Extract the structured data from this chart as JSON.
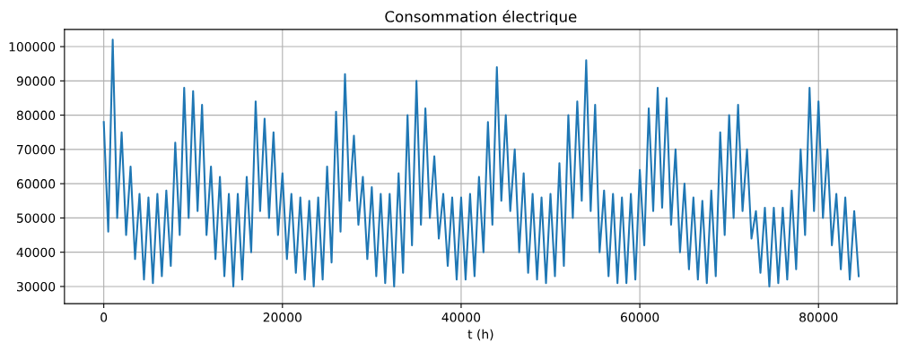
{
  "chart_data": {
    "type": "line",
    "title": "Consommation électrique",
    "xlabel": "t (h)",
    "xlim": [
      -4400,
      88800
    ],
    "ylim": [
      25000,
      105000
    ],
    "xticks": [
      0,
      20000,
      40000,
      60000,
      80000
    ],
    "yticks": [
      30000,
      40000,
      50000,
      60000,
      70000,
      80000,
      90000,
      100000
    ],
    "grid": true,
    "series": [
      {
        "color": "#1f77b4",
        "x": [
          0,
          500,
          1000,
          1500,
          2000,
          2500,
          3000,
          3500,
          4000,
          4500,
          5000,
          5500,
          6000,
          6500,
          7000,
          7500,
          8000,
          8500,
          9000,
          9500,
          10000,
          10500,
          11000,
          11500,
          12000,
          12500,
          13000,
          13500,
          14000,
          14500,
          15000,
          15500,
          16000,
          16500,
          17000,
          17500,
          18000,
          18500,
          19000,
          19500,
          20000,
          20500,
          21000,
          21500,
          22000,
          22500,
          23000,
          23500,
          24000,
          24500,
          25000,
          25500,
          26000,
          26500,
          27000,
          27500,
          28000,
          28500,
          29000,
          29500,
          30000,
          30500,
          31000,
          31500,
          32000,
          32500,
          33000,
          33500,
          34000,
          34500,
          35000,
          35500,
          36000,
          36500,
          37000,
          37500,
          38000,
          38500,
          39000,
          39500,
          40000,
          40500,
          41000,
          41500,
          42000,
          42500,
          43000,
          43500,
          44000,
          44500,
          45000,
          45500,
          46000,
          46500,
          47000,
          47500,
          48000,
          48500,
          49000,
          49500,
          50000,
          50500,
          51000,
          51500,
          52000,
          52500,
          53000,
          53500,
          54000,
          54500,
          55000,
          55500,
          56000,
          56500,
          57000,
          57500,
          58000,
          58500,
          59000,
          59500,
          60000,
          60500,
          61000,
          61500,
          62000,
          62500,
          63000,
          63500,
          64000,
          64500,
          65000,
          65500,
          66000,
          66500,
          67000,
          67500,
          68000,
          68500,
          69000,
          69500,
          70000,
          70500,
          71000,
          71500,
          72000,
          72500,
          73000,
          73500,
          74000,
          74500,
          75000,
          75500,
          76000,
          76500,
          77000,
          77500,
          78000,
          78500,
          79000,
          79500,
          80000,
          80500,
          81000,
          81500,
          82000,
          82500,
          83000,
          83500,
          84000,
          84500
        ],
        "values": [
          78000,
          46000,
          102000,
          50000,
          75000,
          45000,
          65000,
          38000,
          57000,
          32000,
          56000,
          31000,
          57000,
          33000,
          58000,
          36000,
          72000,
          45000,
          88000,
          50000,
          87000,
          52000,
          83000,
          45000,
          65000,
          38000,
          62000,
          33000,
          57000,
          30000,
          57000,
          32000,
          62000,
          40000,
          84000,
          52000,
          79000,
          50000,
          75000,
          45000,
          63000,
          38000,
          57000,
          34000,
          56000,
          32000,
          55000,
          30000,
          56000,
          32000,
          65000,
          37000,
          81000,
          46000,
          92000,
          55000,
          74000,
          48000,
          62000,
          38000,
          59000,
          33000,
          57000,
          31000,
          57000,
          30000,
          63000,
          34000,
          80000,
          42000,
          90000,
          48000,
          82000,
          50000,
          68000,
          44000,
          57000,
          36000,
          56000,
          32000,
          56000,
          32000,
          57000,
          33000,
          62000,
          40000,
          78000,
          48000,
          94000,
          55000,
          80000,
          52000,
          70000,
          40000,
          63000,
          34000,
          57000,
          32000,
          56000,
          31000,
          57000,
          33000,
          66000,
          36000,
          80000,
          50000,
          84000,
          55000,
          96000,
          52000,
          83000,
          40000,
          58000,
          33000,
          57000,
          31000,
          56000,
          31000,
          57000,
          32000,
          64000,
          42000,
          82000,
          52000,
          88000,
          53000,
          85000,
          48000,
          70000,
          40000,
          60000,
          35000,
          56000,
          32000,
          55000,
          31000,
          58000,
          33000,
          75000,
          45000,
          80000,
          50000,
          83000,
          52000,
          70000,
          44000,
          52000,
          34000,
          53000,
          30000,
          53000,
          31000,
          53000,
          32000,
          58000,
          35000,
          70000,
          45000,
          88000,
          52000,
          84000,
          50000,
          70000,
          42000,
          57000,
          35000,
          56000,
          32000,
          52000,
          33000
        ]
      }
    ]
  }
}
